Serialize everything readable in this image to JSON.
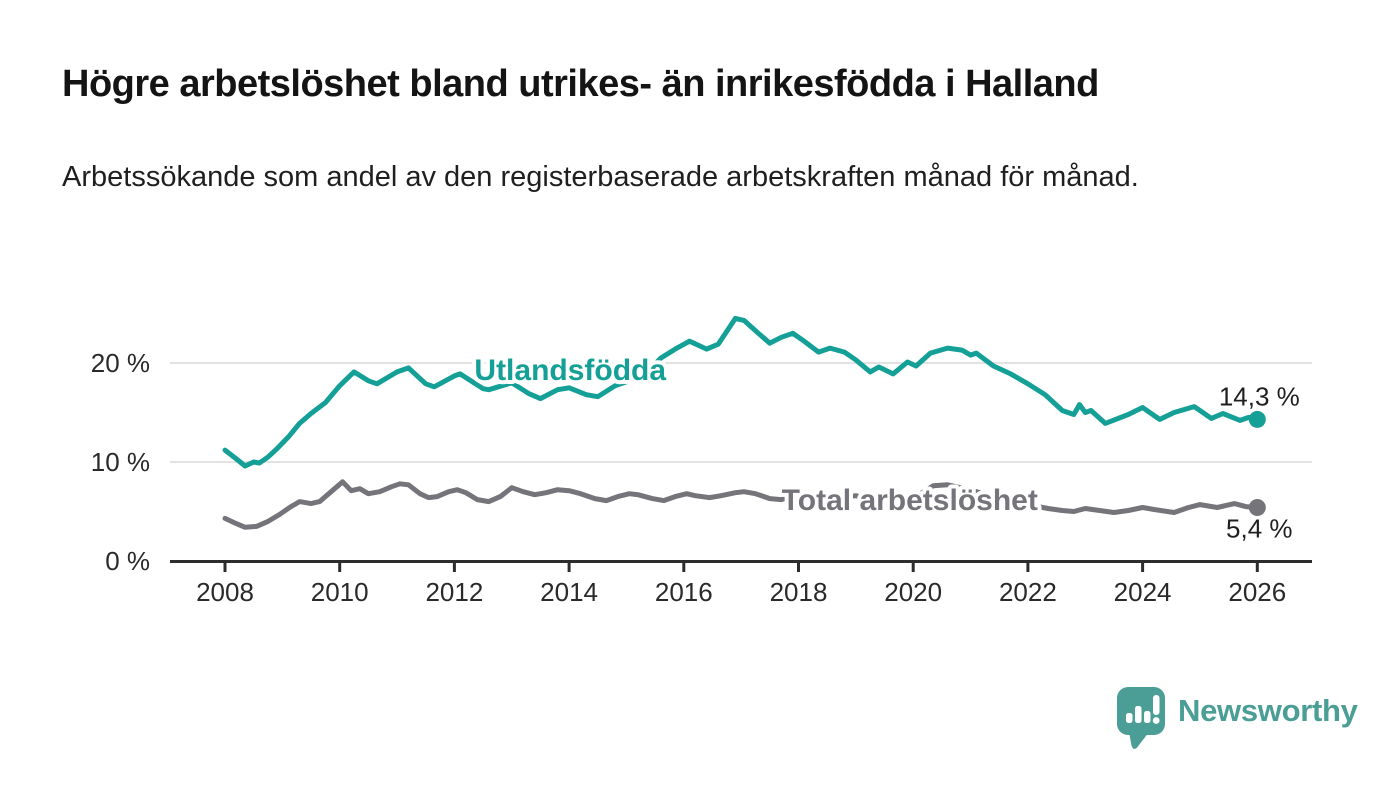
{
  "header": {
    "title": "Högre arbetslöshet bland utrikes- än inrikesfödda i Halland",
    "subtitle": "Arbetssökande som andel av den registerbaserade arbetskraften månad för månad."
  },
  "chart_data": {
    "type": "line",
    "title": "Högre arbetslöshet bland utrikes- än inrikesfödda i Halland",
    "xlabel": "",
    "ylabel": "",
    "x_unit": "year (monthly series)",
    "y_unit": "percent",
    "xlim": [
      2007.05,
      2026.9
    ],
    "ylim": [
      0,
      26.4
    ],
    "grid": "horizontal",
    "legend": "inline-labels",
    "x_ticks": [
      {
        "value": 2008,
        "label": "2008"
      },
      {
        "value": 2010,
        "label": "2010"
      },
      {
        "value": 2012,
        "label": "2012"
      },
      {
        "value": 2014,
        "label": "2014"
      },
      {
        "value": 2016,
        "label": "2016"
      },
      {
        "value": 2018,
        "label": "2018"
      },
      {
        "value": 2020,
        "label": "2020"
      },
      {
        "value": 2022,
        "label": "2022"
      },
      {
        "value": 2024,
        "label": "2024"
      },
      {
        "value": 2026,
        "label": "2026"
      }
    ],
    "y_ticks": [
      {
        "value": 0,
        "label": "0 %"
      },
      {
        "value": 10,
        "label": "10 %"
      },
      {
        "value": 20,
        "label": "20 %"
      }
    ],
    "series": [
      {
        "name": "Utlandsfödda",
        "color": "#14a096",
        "end_value": 14.3,
        "end_label": "14,3 %",
        "label_pos": {
          "x": 2014.02,
          "y": 19.3
        },
        "points": [
          [
            2008.0,
            11.2
          ],
          [
            2008.2,
            10.3
          ],
          [
            2008.35,
            9.6
          ],
          [
            2008.5,
            10.0
          ],
          [
            2008.6,
            9.9
          ],
          [
            2008.75,
            10.5
          ],
          [
            2008.9,
            11.3
          ],
          [
            2009.1,
            12.5
          ],
          [
            2009.3,
            13.9
          ],
          [
            2009.5,
            14.9
          ],
          [
            2009.75,
            16.0
          ],
          [
            2010.0,
            17.7
          ],
          [
            2010.25,
            19.1
          ],
          [
            2010.5,
            18.2
          ],
          [
            2010.65,
            17.9
          ],
          [
            2011.0,
            19.1
          ],
          [
            2011.2,
            19.5
          ],
          [
            2011.5,
            17.9
          ],
          [
            2011.65,
            17.6
          ],
          [
            2012.0,
            18.7
          ],
          [
            2012.1,
            18.9
          ],
          [
            2012.5,
            17.4
          ],
          [
            2012.6,
            17.3
          ],
          [
            2013.0,
            18.0
          ],
          [
            2013.3,
            16.9
          ],
          [
            2013.5,
            16.4
          ],
          [
            2013.8,
            17.3
          ],
          [
            2014.0,
            17.5
          ],
          [
            2014.3,
            16.8
          ],
          [
            2014.5,
            16.6
          ],
          [
            2014.8,
            17.7
          ],
          [
            2015.0,
            18.1
          ],
          [
            2015.3,
            18.7
          ],
          [
            2015.6,
            20.5
          ],
          [
            2015.85,
            21.4
          ],
          [
            2016.1,
            22.2
          ],
          [
            2016.4,
            21.4
          ],
          [
            2016.6,
            21.9
          ],
          [
            2016.9,
            24.5
          ],
          [
            2017.05,
            24.3
          ],
          [
            2017.3,
            23.0
          ],
          [
            2017.5,
            22.0
          ],
          [
            2017.7,
            22.6
          ],
          [
            2017.9,
            23.0
          ],
          [
            2018.1,
            22.2
          ],
          [
            2018.35,
            21.1
          ],
          [
            2018.55,
            21.5
          ],
          [
            2018.8,
            21.1
          ],
          [
            2019.0,
            20.3
          ],
          [
            2019.25,
            19.1
          ],
          [
            2019.4,
            19.6
          ],
          [
            2019.65,
            18.9
          ],
          [
            2019.9,
            20.1
          ],
          [
            2020.05,
            19.7
          ],
          [
            2020.3,
            21.0
          ],
          [
            2020.6,
            21.5
          ],
          [
            2020.85,
            21.3
          ],
          [
            2021.0,
            20.8
          ],
          [
            2021.1,
            21.0
          ],
          [
            2021.4,
            19.7
          ],
          [
            2021.7,
            18.9
          ],
          [
            2022.0,
            17.9
          ],
          [
            2022.3,
            16.8
          ],
          [
            2022.6,
            15.2
          ],
          [
            2022.8,
            14.8
          ],
          [
            2022.9,
            15.8
          ],
          [
            2023.0,
            15.0
          ],
          [
            2023.1,
            15.2
          ],
          [
            2023.35,
            13.9
          ],
          [
            2023.75,
            14.8
          ],
          [
            2024.0,
            15.5
          ],
          [
            2024.3,
            14.3
          ],
          [
            2024.55,
            15.0
          ],
          [
            2024.9,
            15.6
          ],
          [
            2025.2,
            14.4
          ],
          [
            2025.4,
            14.9
          ],
          [
            2025.7,
            14.2
          ],
          [
            2025.85,
            14.5
          ],
          [
            2026.0,
            14.3
          ]
        ]
      },
      {
        "name": "Total arbetslöshet",
        "color": "#74747a",
        "end_value": 5.4,
        "end_label": "5,4 %",
        "label_pos": {
          "x": 2019.94,
          "y": 6.15
        },
        "points": [
          [
            2008.0,
            4.3
          ],
          [
            2008.15,
            3.9
          ],
          [
            2008.35,
            3.4
          ],
          [
            2008.55,
            3.5
          ],
          [
            2008.75,
            4.0
          ],
          [
            2008.95,
            4.7
          ],
          [
            2009.15,
            5.5
          ],
          [
            2009.3,
            6.0
          ],
          [
            2009.5,
            5.8
          ],
          [
            2009.65,
            6.0
          ],
          [
            2009.85,
            7.0
          ],
          [
            2010.05,
            8.0
          ],
          [
            2010.2,
            7.1
          ],
          [
            2010.35,
            7.3
          ],
          [
            2010.5,
            6.8
          ],
          [
            2010.7,
            7.0
          ],
          [
            2010.9,
            7.5
          ],
          [
            2011.05,
            7.8
          ],
          [
            2011.2,
            7.7
          ],
          [
            2011.4,
            6.8
          ],
          [
            2011.55,
            6.4
          ],
          [
            2011.7,
            6.5
          ],
          [
            2011.9,
            7.0
          ],
          [
            2012.05,
            7.2
          ],
          [
            2012.2,
            6.9
          ],
          [
            2012.4,
            6.2
          ],
          [
            2012.6,
            6.0
          ],
          [
            2012.8,
            6.5
          ],
          [
            2013.0,
            7.4
          ],
          [
            2013.2,
            7.0
          ],
          [
            2013.4,
            6.7
          ],
          [
            2013.6,
            6.9
          ],
          [
            2013.8,
            7.2
          ],
          [
            2014.0,
            7.1
          ],
          [
            2014.2,
            6.8
          ],
          [
            2014.45,
            6.3
          ],
          [
            2014.65,
            6.1
          ],
          [
            2014.85,
            6.5
          ],
          [
            2015.05,
            6.8
          ],
          [
            2015.2,
            6.7
          ],
          [
            2015.45,
            6.3
          ],
          [
            2015.65,
            6.1
          ],
          [
            2015.85,
            6.5
          ],
          [
            2016.05,
            6.8
          ],
          [
            2016.2,
            6.6
          ],
          [
            2016.45,
            6.4
          ],
          [
            2016.65,
            6.6
          ],
          [
            2016.9,
            6.9
          ],
          [
            2017.05,
            7.0
          ],
          [
            2017.25,
            6.8
          ],
          [
            2017.5,
            6.3
          ],
          [
            2017.7,
            6.2
          ],
          [
            2017.9,
            6.6
          ],
          [
            2018.05,
            6.7
          ],
          [
            2018.25,
            6.5
          ],
          [
            2018.5,
            6.2
          ],
          [
            2018.7,
            6.4
          ],
          [
            2019.0,
            6.6
          ],
          [
            2019.3,
            6.1
          ],
          [
            2019.6,
            5.9
          ],
          [
            2019.9,
            6.3
          ],
          [
            2020.1,
            6.7
          ],
          [
            2020.35,
            7.6
          ],
          [
            2020.6,
            7.7
          ],
          [
            2020.9,
            7.3
          ],
          [
            2021.1,
            7.0
          ],
          [
            2021.4,
            6.5
          ],
          [
            2021.7,
            6.0
          ],
          [
            2022.0,
            5.7
          ],
          [
            2022.35,
            5.3
          ],
          [
            2022.6,
            5.1
          ],
          [
            2022.8,
            5.0
          ],
          [
            2023.0,
            5.3
          ],
          [
            2023.25,
            5.1
          ],
          [
            2023.5,
            4.9
          ],
          [
            2023.75,
            5.1
          ],
          [
            2024.0,
            5.4
          ],
          [
            2024.2,
            5.2
          ],
          [
            2024.55,
            4.9
          ],
          [
            2024.8,
            5.4
          ],
          [
            2025.0,
            5.7
          ],
          [
            2025.3,
            5.4
          ],
          [
            2025.6,
            5.8
          ],
          [
            2025.8,
            5.5
          ],
          [
            2026.0,
            5.4
          ]
        ]
      }
    ]
  },
  "branding": {
    "name": "Newsworthy",
    "icon": "newsworthy-speech-bubble-bar-chart-icon",
    "color": "#4a9e95"
  }
}
